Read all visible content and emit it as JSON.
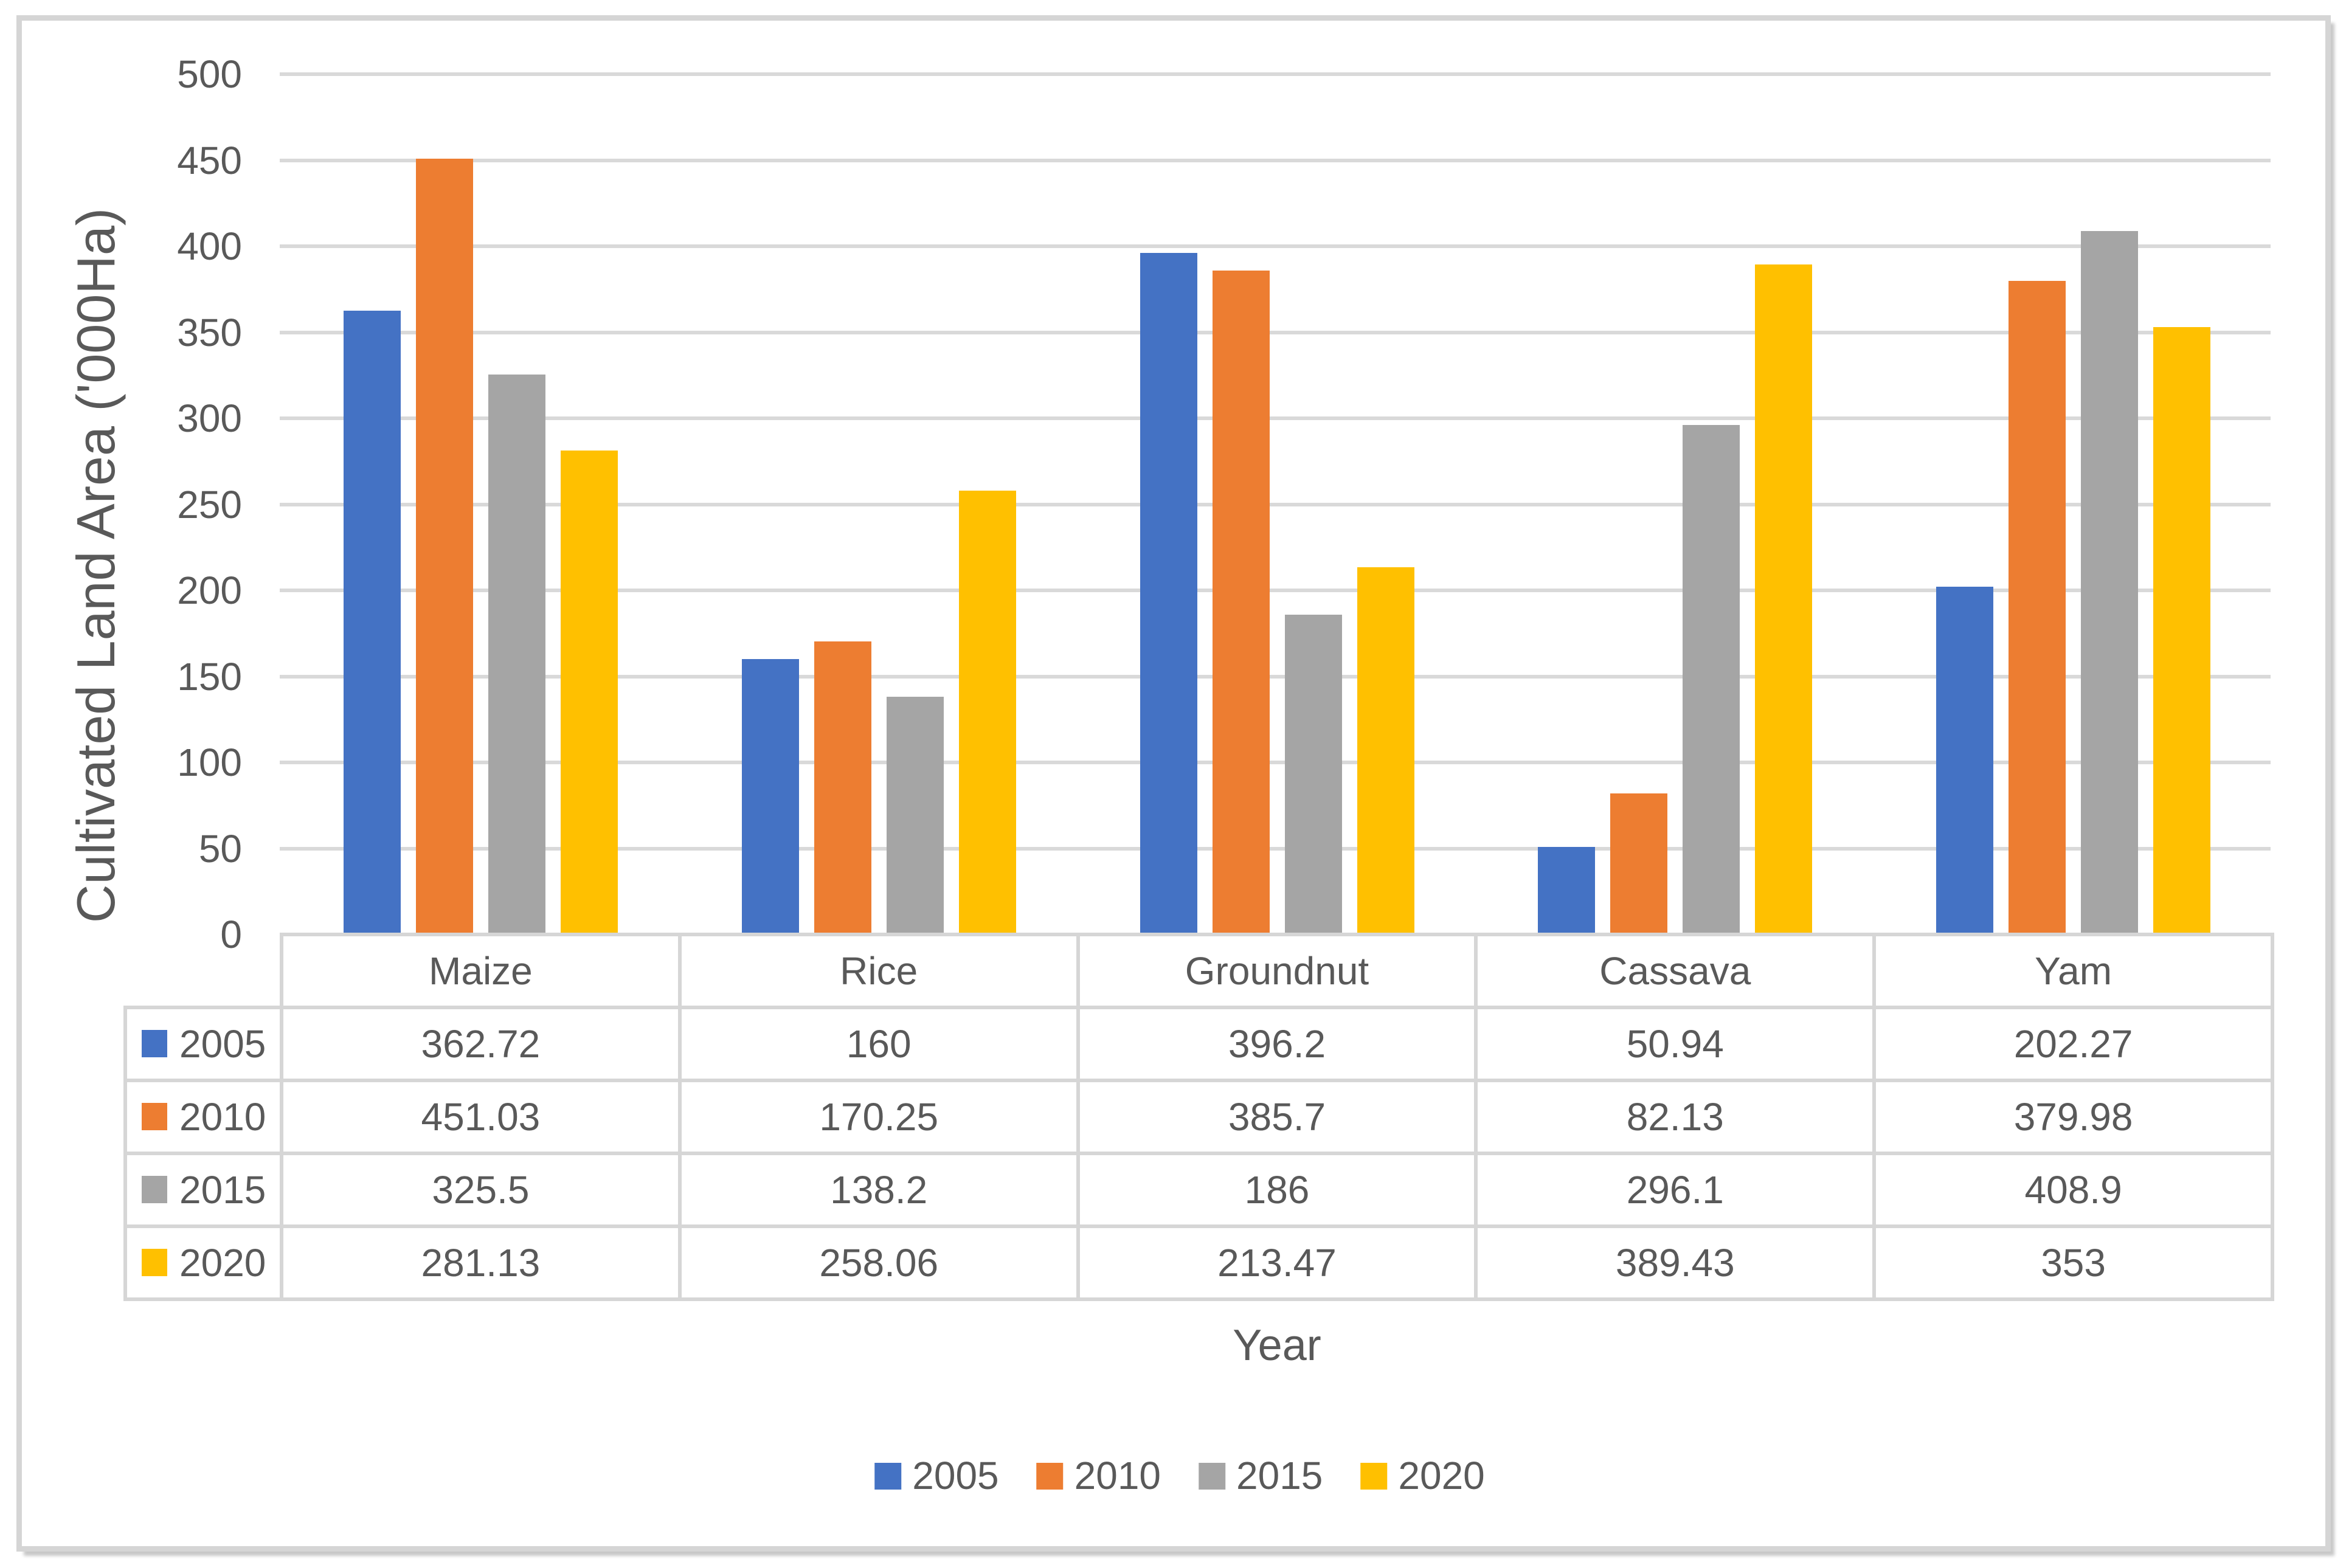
{
  "figure": {
    "background": "#FFFFFF",
    "frame_border_color": "#D5D5D5"
  },
  "chart_data": {
    "type": "bar",
    "title": "",
    "categories": [
      "Maize",
      "Rice",
      "Groundnut",
      "Cassava",
      "Yam"
    ],
    "series": [
      {
        "name": "2005",
        "color": "#4472C4",
        "values": [
          362.72,
          160,
          396.2,
          50.94,
          202.27
        ]
      },
      {
        "name": "2010",
        "color": "#ED7D31",
        "values": [
          451.03,
          170.25,
          385.7,
          82.13,
          379.98
        ]
      },
      {
        "name": "2015",
        "color": "#A5A5A5",
        "values": [
          325.5,
          138.2,
          186,
          296.1,
          408.9
        ]
      },
      {
        "name": "2020",
        "color": "#FFC000",
        "values": [
          281.13,
          258.06,
          213.47,
          389.43,
          353
        ]
      }
    ],
    "xlabel": "Year",
    "ylabel": "Cultivated Land Area ('000Ha)",
    "ylim": [
      0,
      500
    ],
    "ytick_step": 50,
    "grid": true,
    "gridline_color": "#D9D9D9",
    "text_color": "#595959",
    "table_border_color": "#D6D6D6",
    "legend_position": "bottom",
    "legend_entries": [
      "2005",
      "2010",
      "2015",
      "2020"
    ],
    "data_table": true
  }
}
